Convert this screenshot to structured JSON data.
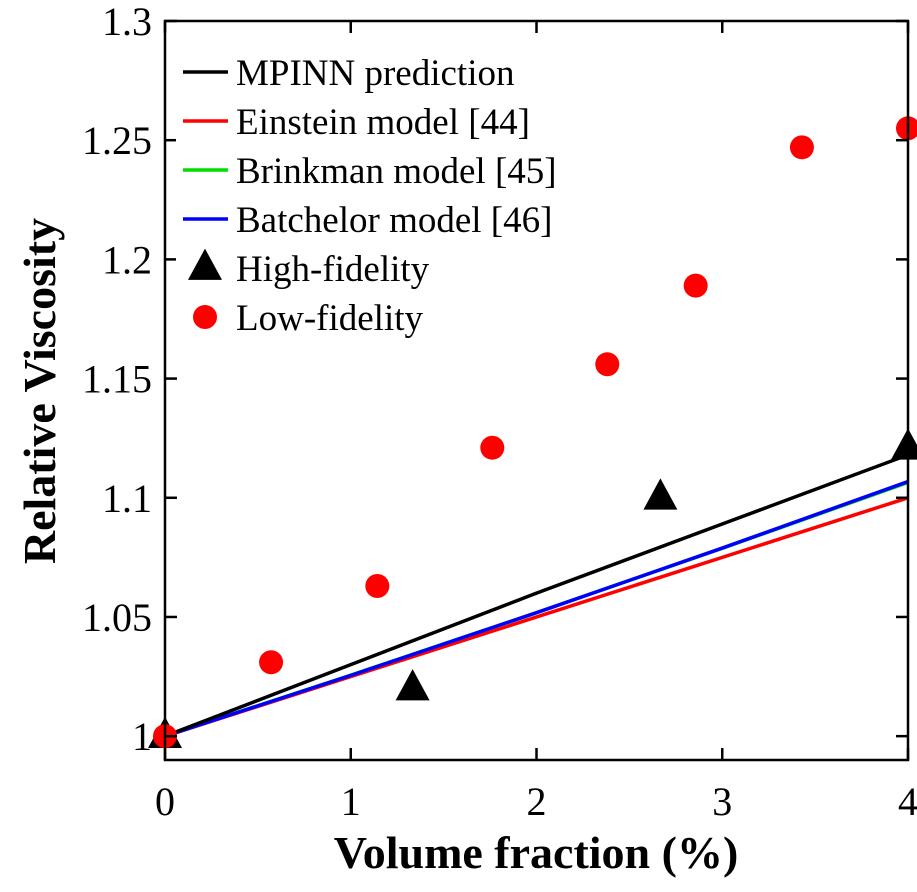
{
  "chart_data": {
    "type": "line",
    "xlabel": "Volume fraction (%)",
    "ylabel": "Relative Viscosity",
    "xlim": [
      0,
      4
    ],
    "ylim": [
      0.99,
      1.3
    ],
    "xticks": [
      0,
      1,
      2,
      3,
      4
    ],
    "xtick_labels": [
      "0",
      "1",
      "2",
      "3",
      "4"
    ],
    "yticks": [
      1,
      1.05,
      1.1,
      1.15,
      1.2,
      1.25,
      1.3
    ],
    "ytick_labels": [
      "1",
      "1.05",
      "1.1",
      "1.15",
      "1.2",
      "1.25",
      "1.3"
    ],
    "grid": false,
    "legend_position": "top-left",
    "series": [
      {
        "name": "MPINN prediction",
        "kind": "line",
        "color": "#000000",
        "x": [
          0,
          1,
          2,
          3,
          4
        ],
        "y": [
          1.0,
          1.03,
          1.06,
          1.089,
          1.118
        ]
      },
      {
        "name": "Einstein model [44]",
        "kind": "line",
        "color": "#ff0000",
        "x": [
          0,
          4
        ],
        "y": [
          1.0,
          1.1
        ]
      },
      {
        "name": "Brinkman model [45]",
        "kind": "line",
        "color": "#00dd00",
        "x": [
          0,
          1,
          2,
          3,
          4
        ],
        "y": [
          1.0,
          1.0256,
          1.0518,
          1.0788,
          1.1064
        ]
      },
      {
        "name": "Batchelor model [46]",
        "kind": "line",
        "color": "#0000ff",
        "x": [
          0,
          1,
          2,
          3,
          4
        ],
        "y": [
          1.0,
          1.0255,
          1.0518,
          1.0789,
          1.1068
        ]
      },
      {
        "name": "High-fidelity",
        "kind": "marker-triangle",
        "color": "#000000",
        "x": [
          0,
          1.333,
          2.667,
          4.0
        ],
        "y": [
          1.0,
          1.02,
          1.1,
          1.121
        ]
      },
      {
        "name": "Low-fidelity",
        "kind": "marker-circle",
        "color": "#ff0000",
        "x": [
          0,
          0.571,
          1.143,
          1.762,
          2.381,
          2.857,
          3.429,
          4.0
        ],
        "y": [
          1.0,
          1.031,
          1.063,
          1.121,
          1.156,
          1.189,
          1.247,
          1.255
        ]
      }
    ]
  }
}
